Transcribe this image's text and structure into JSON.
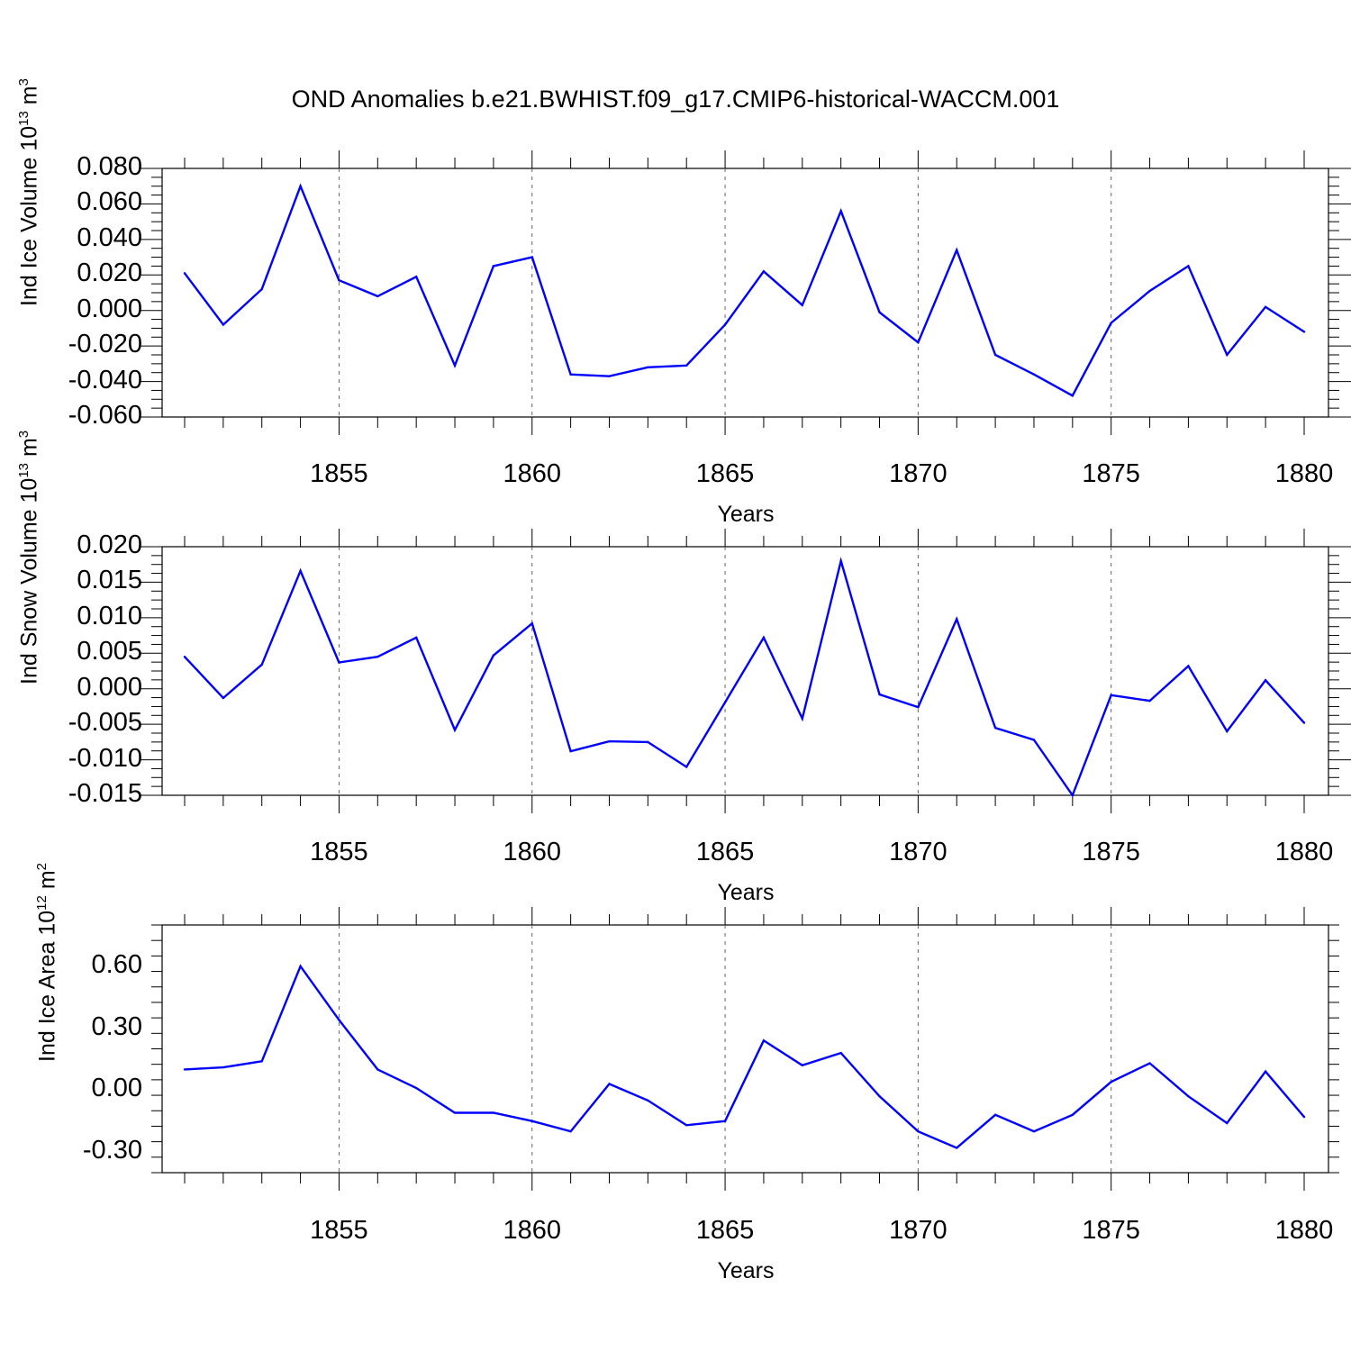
{
  "title": "OND Anomalies b.e21.BWHIST.f09_g17.CMIP6-historical-WACCM.001",
  "line_color": "#0000ff",
  "chart_data": [
    {
      "type": "line",
      "ylabel": {
        "prefix": "Ind Ice Volume 10",
        "exp": "13",
        "unit": " m",
        "unit_exp": "3"
      },
      "xlabel": "Years",
      "xlim": [
        1851,
        1880
      ],
      "ylim": [
        -0.06,
        0.08
      ],
      "ytick_values": [
        -0.06,
        -0.04,
        -0.02,
        0.0,
        0.02,
        0.04,
        0.06,
        0.08
      ],
      "ytick_labels": [
        "-0.060",
        "-0.040",
        "-0.020",
        "0.000",
        "0.020",
        "0.040",
        "0.060",
        "0.080"
      ],
      "xtick_values": [
        1855,
        1860,
        1865,
        1870,
        1875,
        1880
      ],
      "xtick_labels": [
        "1855",
        "1860",
        "1865",
        "1870",
        "1875",
        "1880"
      ],
      "x": [
        1851,
        1852,
        1853,
        1854,
        1855,
        1856,
        1857,
        1858,
        1859,
        1860,
        1861,
        1862,
        1863,
        1864,
        1865,
        1866,
        1867,
        1868,
        1869,
        1870,
        1871,
        1872,
        1873,
        1874,
        1875,
        1876,
        1877,
        1878,
        1879,
        1880
      ],
      "values": [
        0.021,
        -0.008,
        0.012,
        0.07,
        0.017,
        0.008,
        0.019,
        -0.031,
        0.025,
        0.03,
        -0.036,
        -0.037,
        -0.032,
        -0.031,
        -0.008,
        0.022,
        0.003,
        0.056,
        -0.001,
        -0.018,
        0.034,
        -0.025,
        -0.036,
        -0.048,
        -0.007,
        0.011,
        0.025,
        -0.025,
        0.002,
        -0.012
      ]
    },
    {
      "type": "line",
      "ylabel": {
        "prefix": "Ind Snow Volume 10",
        "exp": "13",
        "unit": " m",
        "unit_exp": "3"
      },
      "xlabel": "Years",
      "xlim": [
        1851,
        1880
      ],
      "ylim": [
        -0.015,
        0.02
      ],
      "ytick_values": [
        -0.015,
        -0.01,
        -0.005,
        0.0,
        0.005,
        0.01,
        0.015,
        0.02
      ],
      "ytick_labels": [
        "-0.015",
        "-0.010",
        "-0.005",
        "0.000",
        "0.005",
        "0.010",
        "0.015",
        "0.020"
      ],
      "xtick_values": [
        1855,
        1860,
        1865,
        1870,
        1875,
        1880
      ],
      "xtick_labels": [
        "1855",
        "1860",
        "1865",
        "1870",
        "1875",
        "1880"
      ],
      "x": [
        1851,
        1852,
        1853,
        1854,
        1855,
        1856,
        1857,
        1858,
        1859,
        1860,
        1861,
        1862,
        1863,
        1864,
        1865,
        1866,
        1867,
        1868,
        1869,
        1870,
        1871,
        1872,
        1873,
        1874,
        1875,
        1876,
        1877,
        1878,
        1879,
        1880
      ],
      "values": [
        0.0045,
        -0.0013,
        0.0034,
        0.0166,
        0.0037,
        0.0045,
        0.0072,
        -0.0058,
        0.0047,
        0.0092,
        -0.0088,
        -0.0074,
        -0.0075,
        -0.011,
        -0.0019,
        0.0072,
        -0.0042,
        0.018,
        -0.0008,
        -0.0026,
        0.0098,
        -0.0055,
        -0.0072,
        -0.015,
        -0.0009,
        -0.0017,
        0.0032,
        -0.006,
        0.0012,
        -0.0048
      ]
    },
    {
      "type": "line",
      "ylabel": {
        "prefix": "Ind Ice Area 10",
        "exp": "12",
        "unit": " m",
        "unit_exp": "2"
      },
      "xlabel": "Years",
      "xlim": [
        1851,
        1880
      ],
      "ylim": [
        -0.4,
        0.8
      ],
      "ytick_values": [
        -0.3,
        0.0,
        0.3,
        0.6
      ],
      "ytick_labels": [
        "-0.30",
        "0.00",
        "0.30",
        "0.60"
      ],
      "xtick_values": [
        1855,
        1860,
        1865,
        1870,
        1875,
        1880
      ],
      "xtick_labels": [
        "1855",
        "1860",
        "1865",
        "1870",
        "1875",
        "1880"
      ],
      "x": [
        1851,
        1852,
        1853,
        1854,
        1855,
        1856,
        1857,
        1858,
        1859,
        1860,
        1861,
        1862,
        1863,
        1864,
        1865,
        1866,
        1867,
        1868,
        1869,
        1870,
        1871,
        1872,
        1873,
        1874,
        1875,
        1876,
        1877,
        1878,
        1879,
        1880
      ],
      "values": [
        0.1,
        0.11,
        0.14,
        0.6,
        0.34,
        0.1,
        0.01,
        -0.11,
        -0.11,
        -0.15,
        -0.2,
        0.03,
        -0.05,
        -0.17,
        -0.15,
        0.24,
        0.12,
        0.18,
        -0.03,
        -0.2,
        -0.28,
        -0.12,
        -0.2,
        -0.12,
        0.04,
        0.13,
        -0.03,
        -0.16,
        0.09,
        -0.13
      ]
    }
  ]
}
